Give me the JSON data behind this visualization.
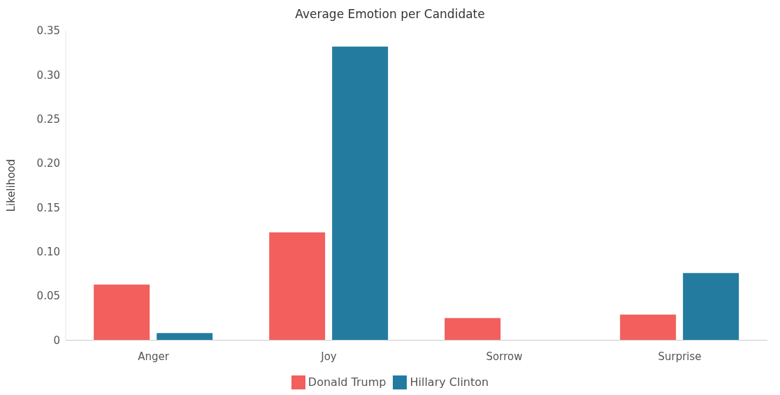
{
  "chart_data": {
    "type": "bar",
    "title": "Average Emotion per Candidate",
    "ylabel": "Likelihood",
    "categories": [
      "Anger",
      "Joy",
      "Sorrow",
      "Surprise"
    ],
    "series": [
      {
        "name": "Donald Trump",
        "color": "#f25f5c",
        "values": [
          0.063,
          0.122,
          0.025,
          0.029
        ]
      },
      {
        "name": "Hillary Clinton",
        "color": "#247ba0",
        "values": [
          0.008,
          0.332,
          0,
          0.076
        ]
      }
    ],
    "ylim": [
      0,
      0.35
    ],
    "yticks": [
      0,
      0.05,
      {
        "value": 0.1,
        "label": "0.10"
      },
      0.15,
      {
        "value": 0.2,
        "label": "0.20"
      },
      0.25,
      {
        "value": 0.3,
        "label": "0.30"
      },
      0.35
    ],
    "grid": false,
    "legend": "bottom"
  }
}
